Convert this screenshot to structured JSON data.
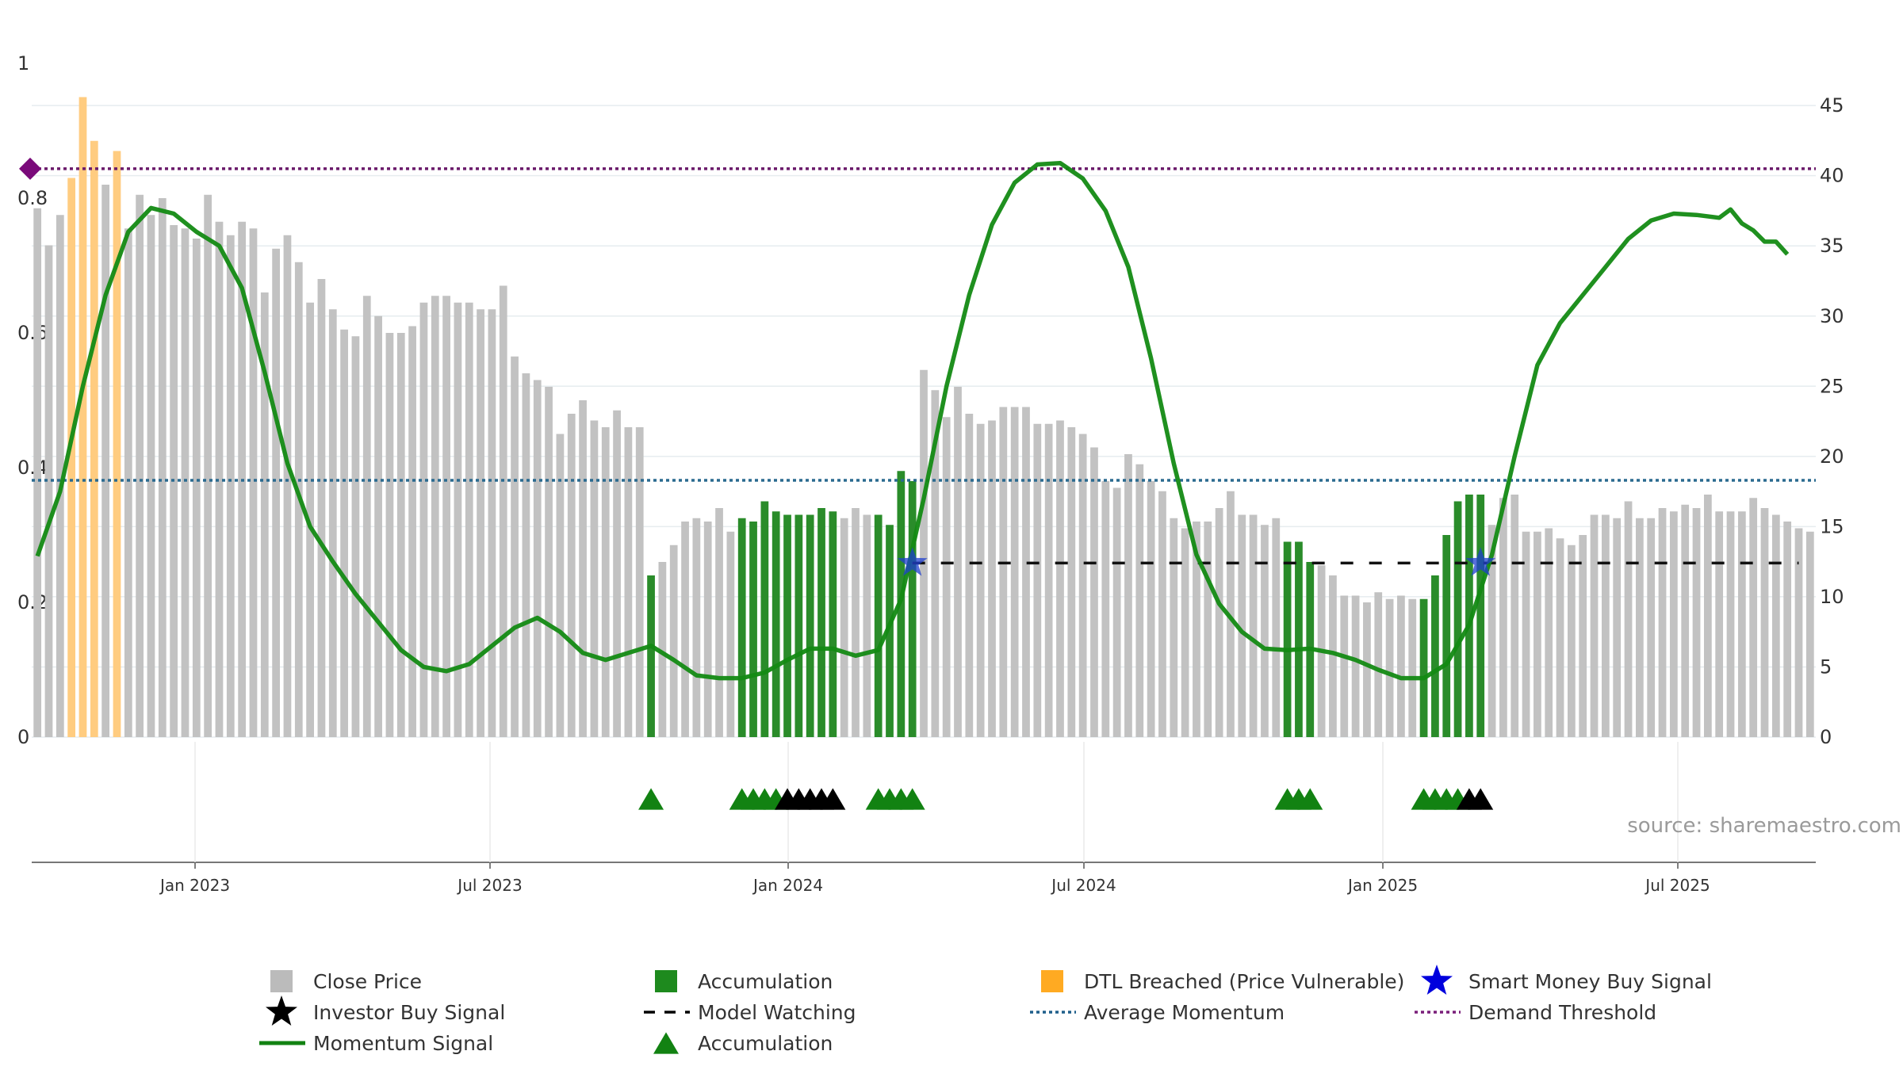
{
  "chart_data": {
    "type": "bar",
    "x_tick_labels": [
      "Jan 2023",
      "Jul 2023",
      "Jan 2024",
      "Jul 2024",
      "Jan 2025",
      "Jul 2025"
    ],
    "y_left": {
      "range": [
        0,
        1
      ],
      "tick_labels": [
        "0",
        "0.2",
        "0.4",
        "0.6",
        "0.8",
        "1"
      ]
    },
    "y_right": {
      "range": [
        0,
        48
      ],
      "tick_labels": [
        "0",
        "5",
        "10",
        "15",
        "20",
        "25",
        "30",
        "35",
        "40",
        "45"
      ]
    },
    "grid": "horizontal",
    "legend_position": "bottom",
    "source": "source: sharemaestro.com",
    "thresholds": {
      "demand_threshold": 40.5,
      "average_momentum": 18.3,
      "model_watching": 12.4
    },
    "close_price": [
      0.785,
      0.73,
      0.775,
      0.83,
      0.95,
      0.885,
      0.82,
      0.87,
      0.755,
      0.805,
      0.775,
      0.8,
      0.76,
      0.755,
      0.74,
      0.805,
      0.765,
      0.745,
      0.765,
      0.755,
      0.66,
      0.725,
      0.745,
      0.705,
      0.645,
      0.68,
      0.635,
      0.605,
      0.595,
      0.655,
      0.625,
      0.6,
      0.6,
      0.61,
      0.645,
      0.655,
      0.655,
      0.645,
      0.645,
      0.635,
      0.635,
      0.67,
      0.565,
      0.54,
      0.53,
      0.52,
      0.45,
      0.48,
      0.5,
      0.47,
      0.46,
      0.485,
      0.46,
      0.46,
      0.24,
      0.26,
      0.285,
      0.32,
      0.325,
      0.32,
      0.34,
      0.305,
      0.325,
      0.32,
      0.35,
      0.335,
      0.33,
      0.33,
      0.33,
      0.34,
      0.335,
      0.325,
      0.34,
      0.33,
      0.33,
      0.315,
      0.395,
      0.38,
      0.545,
      0.515,
      0.475,
      0.52,
      0.48,
      0.465,
      0.47,
      0.49,
      0.49,
      0.49,
      0.465,
      0.465,
      0.47,
      0.46,
      0.45,
      0.43,
      0.38,
      0.37,
      0.42,
      0.405,
      0.38,
      0.365,
      0.325,
      0.31,
      0.32,
      0.32,
      0.34,
      0.365,
      0.33,
      0.33,
      0.315,
      0.325,
      0.29,
      0.29,
      0.26,
      0.255,
      0.24,
      0.21,
      0.21,
      0.2,
      0.215,
      0.205,
      0.21,
      0.205,
      0.205,
      0.24,
      0.3,
      0.35,
      0.36,
      0.36,
      0.315,
      0.355,
      0.36,
      0.305,
      0.305,
      0.31,
      0.295,
      0.285,
      0.3,
      0.33,
      0.33,
      0.325,
      0.35,
      0.325,
      0.325,
      0.34,
      0.335,
      0.345,
      0.34,
      0.36,
      0.335,
      0.335,
      0.335,
      0.355,
      0.34,
      0.33,
      0.32,
      0.31,
      0.305
    ],
    "bar_status": [
      "c",
      "c",
      "c",
      "d",
      "d",
      "d",
      "c",
      "d",
      "c",
      "c",
      "c",
      "c",
      "c",
      "c",
      "c",
      "c",
      "c",
      "c",
      "c",
      "c",
      "c",
      "c",
      "c",
      "c",
      "c",
      "c",
      "c",
      "c",
      "c",
      "c",
      "c",
      "c",
      "c",
      "c",
      "c",
      "c",
      "c",
      "c",
      "c",
      "c",
      "c",
      "c",
      "c",
      "c",
      "c",
      "c",
      "c",
      "c",
      "c",
      "c",
      "c",
      "c",
      "c",
      "c",
      "a",
      "c",
      "c",
      "c",
      "c",
      "c",
      "c",
      "c",
      "a",
      "a",
      "a",
      "a",
      "a",
      "a",
      "a",
      "a",
      "a",
      "c",
      "c",
      "c",
      "a",
      "a",
      "a",
      "a",
      "c",
      "c",
      "c",
      "c",
      "c",
      "c",
      "c",
      "c",
      "c",
      "c",
      "c",
      "c",
      "c",
      "c",
      "c",
      "c",
      "c",
      "c",
      "c",
      "c",
      "c",
      "c",
      "c",
      "c",
      "c",
      "c",
      "c",
      "c",
      "c",
      "c",
      "c",
      "c",
      "a",
      "a",
      "a",
      "c",
      "c",
      "c",
      "c",
      "c",
      "c",
      "c",
      "c",
      "c",
      "a",
      "a",
      "a",
      "a",
      "a",
      "a",
      "c",
      "c",
      "c",
      "c",
      "c",
      "c",
      "c",
      "c",
      "c",
      "c",
      "c",
      "c",
      "c",
      "c",
      "c",
      "c",
      "c",
      "c",
      "c",
      "c",
      "c",
      "c",
      "c",
      "c",
      "c",
      "c",
      "c",
      "c",
      "c"
    ],
    "momentum_signal": [
      [
        0,
        12.9
      ],
      [
        2,
        17.5
      ],
      [
        4,
        25
      ],
      [
        6,
        31.5
      ],
      [
        8,
        36
      ],
      [
        10,
        37.7
      ],
      [
        12,
        37.3
      ],
      [
        14,
        36
      ],
      [
        16,
        35
      ],
      [
        18,
        32
      ],
      [
        20,
        26
      ],
      [
        22,
        19.5
      ],
      [
        24,
        15
      ],
      [
        26,
        12.5
      ],
      [
        28,
        10.2
      ],
      [
        30,
        8.2
      ],
      [
        32,
        6.2
      ],
      [
        34,
        5
      ],
      [
        36,
        4.7
      ],
      [
        38,
        5.2
      ],
      [
        40,
        6.5
      ],
      [
        42,
        7.8
      ],
      [
        44,
        8.5
      ],
      [
        46,
        7.5
      ],
      [
        48,
        6
      ],
      [
        50,
        5.5
      ],
      [
        52,
        6
      ],
      [
        54,
        6.5
      ],
      [
        56,
        5.5
      ],
      [
        58,
        4.4
      ],
      [
        60,
        4.2
      ],
      [
        62,
        4.2
      ],
      [
        64,
        4.6
      ],
      [
        66,
        5.5
      ],
      [
        68,
        6.3
      ],
      [
        70,
        6.3
      ],
      [
        72,
        5.8
      ],
      [
        74,
        6.2
      ],
      [
        76,
        9.8
      ],
      [
        78,
        17
      ],
      [
        80,
        25
      ],
      [
        82,
        31.5
      ],
      [
        84,
        36.5
      ],
      [
        86,
        39.5
      ],
      [
        88,
        40.8
      ],
      [
        90,
        40.9
      ],
      [
        92,
        39.8
      ],
      [
        94,
        37.5
      ],
      [
        96,
        33.5
      ],
      [
        98,
        27
      ],
      [
        100,
        19.5
      ],
      [
        102,
        13
      ],
      [
        104,
        9.5
      ],
      [
        106,
        7.5
      ],
      [
        108,
        6.3
      ],
      [
        110,
        6.2
      ],
      [
        112,
        6.3
      ],
      [
        114,
        6
      ],
      [
        116,
        5.5
      ],
      [
        118,
        4.8
      ],
      [
        120,
        4.2
      ],
      [
        122,
        4.2
      ],
      [
        124,
        5.2
      ],
      [
        126,
        8
      ],
      [
        128,
        13
      ],
      [
        130,
        20
      ],
      [
        132,
        26.5
      ],
      [
        134,
        29.5
      ],
      [
        136,
        31.5
      ],
      [
        138,
        33.5
      ],
      [
        140,
        35.5
      ],
      [
        142,
        36.8
      ],
      [
        144,
        37.3
      ],
      [
        146,
        37.2
      ],
      [
        148,
        37
      ],
      [
        149,
        37.6
      ],
      [
        150,
        36.6
      ],
      [
        151,
        36.1
      ],
      [
        152,
        35.3
      ],
      [
        153,
        35.3
      ],
      [
        154,
        34.4
      ]
    ],
    "smart_money_buy_signal": [
      77,
      127
    ],
    "model_watching_range": [
      77,
      155
    ],
    "accumulation_markers": [
      54,
      62,
      63,
      64,
      65,
      74,
      75,
      76,
      77,
      110,
      111,
      112,
      122,
      123,
      124,
      125
    ],
    "investor_buy_markers": [
      66,
      67,
      68,
      69,
      70,
      126,
      127
    ],
    "legend": [
      {
        "label": "Close Price",
        "kind": "square",
        "color": "#bbbbbb"
      },
      {
        "label": "Accumulation",
        "kind": "square",
        "color": "#1e8a1e"
      },
      {
        "label": "DTL Breached (Price Vulnerable)",
        "kind": "square",
        "color": "#ffaa22"
      },
      {
        "label": "Smart Money Buy Signal",
        "kind": "star",
        "color": "#0000dd"
      },
      {
        "label": "Investor Buy Signal",
        "kind": "star",
        "color": "#000000"
      },
      {
        "label": "Model Watching",
        "kind": "dash",
        "color": "#000000"
      },
      {
        "label": "Average Momentum",
        "kind": "dot",
        "color": "#1f5f8b"
      },
      {
        "label": "Demand Threshold",
        "kind": "dot",
        "color": "#7a1f7a"
      },
      {
        "label": "Momentum Signal",
        "kind": "line",
        "color": "#128212"
      },
      {
        "label": "Accumulation",
        "kind": "triangle",
        "color": "#128212"
      }
    ]
  }
}
